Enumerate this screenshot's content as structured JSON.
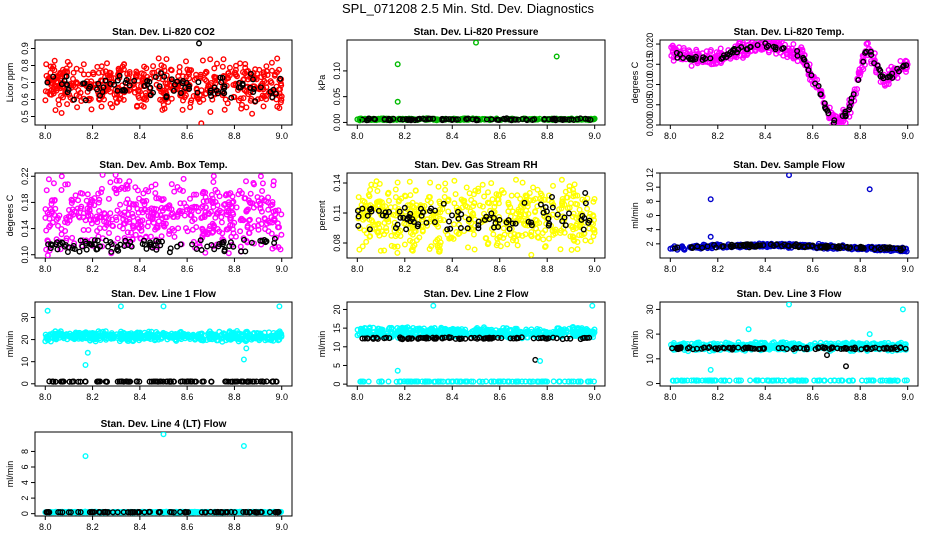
{
  "title": "SPL_071208  2.5 Min. Std. Dev. Diagnostics",
  "chart_data": [
    {
      "type": "scatter",
      "title": "Stan. Dev. Li-820 CO2",
      "xlabel": "",
      "ylabel": "Licor ppm",
      "xlim": [
        8.0,
        9.0
      ],
      "xticks": [
        "8.0",
        "8.2",
        "8.4",
        "8.6",
        "8.8",
        "9.0"
      ],
      "ylim": [
        0.45,
        0.95
      ],
      "yticks": [
        "0.5",
        "0.6",
        "0.7",
        "0.8",
        "0.9"
      ],
      "series": [
        {
          "name": "cloud",
          "color": "#ff0000",
          "base": 0.68,
          "noise": 0.17,
          "n": 520
        },
        {
          "name": "ref",
          "color": "#000000",
          "base": 0.68,
          "noise": 0.1,
          "n": 90
        }
      ],
      "outliers": [
        {
          "x": 8.65,
          "y": 0.93,
          "color": "#000000"
        },
        {
          "x": 8.66,
          "y": 0.46,
          "color": "#ff0000"
        },
        {
          "x": 8.99,
          "y": 0.55,
          "color": "#ff0000"
        }
      ]
    },
    {
      "type": "scatter",
      "title": "Stan. Dev. Li-820 Pressure",
      "xlabel": "",
      "ylabel": "kPa",
      "xlim": [
        8.0,
        9.0
      ],
      "xticks": [
        "8.0",
        "8.2",
        "8.4",
        "8.6",
        "8.8",
        "9.0"
      ],
      "ylim": [
        -0.005,
        0.16
      ],
      "yticks": [
        "0.00",
        "0.05",
        "0.10"
      ],
      "series": [
        {
          "name": "cloud",
          "color": "#00bb00",
          "base": 0.006,
          "noise": 0.002,
          "n": 300
        },
        {
          "name": "ref",
          "color": "#000000",
          "base": 0.006,
          "noise": 0.002,
          "n": 90
        }
      ],
      "outliers": [
        {
          "x": 8.17,
          "y": 0.113,
          "color": "#00bb00"
        },
        {
          "x": 8.17,
          "y": 0.04,
          "color": "#00bb00"
        },
        {
          "x": 8.5,
          "y": 0.155,
          "color": "#00bb00"
        },
        {
          "x": 8.84,
          "y": 0.128,
          "color": "#00bb00"
        },
        {
          "x": 8.01,
          "y": 0.004,
          "color": "#00bb00"
        }
      ]
    },
    {
      "type": "scatter",
      "title": "Stan. Dev. Li-820 Temp.",
      "xlabel": "",
      "ylabel": "degrees C",
      "xlim": [
        8.0,
        9.0
      ],
      "xticks": [
        "8.0",
        "8.2",
        "8.4",
        "8.6",
        "8.8",
        "9.0"
      ],
      "ylim": [
        0.0,
        0.021
      ],
      "yticks": [
        "0.000",
        "0.005",
        "0.010",
        "0.015",
        "0.020"
      ],
      "series": [
        {
          "name": "cloud",
          "color": "#ff00ff",
          "curve": "temp",
          "noise": 0.0025,
          "n": 420
        },
        {
          "name": "ref",
          "color": "#000000",
          "curve": "temp",
          "noise": 0.001,
          "n": 95
        }
      ],
      "outliers": []
    },
    {
      "type": "scatter",
      "title": "Stan. Dev. Amb. Box Temp.",
      "xlabel": "",
      "ylabel": "degrees C",
      "xlim": [
        8.0,
        9.0
      ],
      "xticks": [
        "8.0",
        "8.2",
        "8.4",
        "8.6",
        "8.8",
        "9.0"
      ],
      "ylim": [
        0.095,
        0.225
      ],
      "yticks": [
        "0.10",
        "0.14",
        "0.18",
        "0.22"
      ],
      "series": [
        {
          "name": "cloud",
          "color": "#ff00ff",
          "base": 0.16,
          "noise": 0.065,
          "n": 520
        },
        {
          "name": "ref",
          "color": "#000000",
          "base": 0.115,
          "noise": 0.012,
          "n": 95
        }
      ],
      "outliers": [
        {
          "x": 8.07,
          "y": 0.22,
          "color": "#ff00ff"
        }
      ]
    },
    {
      "type": "scatter",
      "title": "Stan. Dev. Gas Stream RH",
      "xlabel": "",
      "ylabel": "percent",
      "xlim": [
        8.0,
        9.0
      ],
      "xticks": [
        "8.0",
        "8.2",
        "8.4",
        "8.6",
        "8.8",
        "9.0"
      ],
      "ylim": [
        0.065,
        0.15
      ],
      "yticks": [
        "0.08",
        "0.11",
        "0.14"
      ],
      "series": [
        {
          "name": "cloud",
          "color": "#ffff00",
          "base": 0.105,
          "noise": 0.04,
          "n": 540
        },
        {
          "name": "ref",
          "color": "#000000",
          "base": 0.105,
          "noise": 0.018,
          "n": 90
        }
      ],
      "outliers": [
        {
          "x": 8.96,
          "y": 0.13,
          "color": "#000000"
        },
        {
          "x": 8.82,
          "y": 0.126,
          "color": "#000000"
        }
      ]
    },
    {
      "type": "scatter",
      "title": "Stan. Dev. Sample Flow",
      "xlabel": "",
      "ylabel": "ml/min",
      "xlim": [
        8.0,
        9.0
      ],
      "xticks": [
        "8.0",
        "8.2",
        "8.4",
        "8.6",
        "8.8",
        "9.0"
      ],
      "ylim": [
        0.0,
        12.0
      ],
      "yticks": [
        "2",
        "4",
        "6",
        "8",
        "10",
        "12"
      ],
      "series": [
        {
          "name": "cloud",
          "color": "#0000cc",
          "curve": "flow",
          "noise": 0.35,
          "n": 320
        },
        {
          "name": "ref",
          "color": "#000000",
          "curve": "flow",
          "noise": 0.25,
          "n": 100
        }
      ],
      "outliers": [
        {
          "x": 8.17,
          "y": 8.3,
          "color": "#0000cc"
        },
        {
          "x": 8.17,
          "y": 3.0,
          "color": "#0000cc"
        },
        {
          "x": 8.5,
          "y": 11.7,
          "color": "#0000cc"
        },
        {
          "x": 8.84,
          "y": 9.7,
          "color": "#0000cc"
        }
      ]
    },
    {
      "type": "scatter",
      "title": "Stan. Dev. Line 1 Flow",
      "xlabel": "",
      "ylabel": "ml/min",
      "xlim": [
        8.0,
        9.0
      ],
      "xticks": [
        "8.0",
        "8.2",
        "8.4",
        "8.6",
        "8.8",
        "9.0"
      ],
      "ylim": [
        -1,
        37
      ],
      "yticks": [
        "0",
        "10",
        "20",
        "30"
      ],
      "series": [
        {
          "name": "cloud",
          "color": "#00ffff",
          "base": 21.5,
          "noise": 2.5,
          "n": 520
        },
        {
          "name": "ref",
          "color": "#000000",
          "base": 1.0,
          "noise": 0.1,
          "n": 100
        }
      ],
      "outliers": [
        {
          "x": 8.01,
          "y": 33,
          "color": "#00ffff"
        },
        {
          "x": 8.32,
          "y": 35,
          "color": "#00ffff"
        },
        {
          "x": 8.5,
          "y": 35,
          "color": "#00ffff"
        },
        {
          "x": 8.99,
          "y": 35,
          "color": "#00ffff"
        },
        {
          "x": 8.17,
          "y": 8.5,
          "color": "#00ffff"
        },
        {
          "x": 8.18,
          "y": 14,
          "color": "#00ffff"
        },
        {
          "x": 8.84,
          "y": 11,
          "color": "#00ffff"
        },
        {
          "x": 8.85,
          "y": 16,
          "color": "#00ffff"
        }
      ]
    },
    {
      "type": "scatter",
      "title": "Stan. Dev. Line 2 Flow",
      "xlabel": "",
      "ylabel": "ml/min",
      "xlim": [
        8.0,
        9.0
      ],
      "xticks": [
        "8.0",
        "8.2",
        "8.4",
        "8.6",
        "8.8",
        "9.0"
      ],
      "ylim": [
        -0.5,
        22
      ],
      "yticks": [
        "0",
        "5",
        "10",
        "15",
        "20"
      ],
      "series": [
        {
          "name": "cloud",
          "color": "#00ffff",
          "base": 13.8,
          "noise": 1.6,
          "n": 520
        },
        {
          "name": "ref",
          "color": "#000000",
          "base": 12.3,
          "noise": 0.3,
          "n": 90
        },
        {
          "name": "base",
          "color": "#00ffff",
          "base": 0.7,
          "noise": 0.05,
          "n": 110
        }
      ],
      "outliers": [
        {
          "x": 8.17,
          "y": 3.6,
          "color": "#00ffff"
        },
        {
          "x": 8.32,
          "y": 21,
          "color": "#00ffff"
        },
        {
          "x": 8.75,
          "y": 6.5,
          "color": "#000000"
        },
        {
          "x": 8.77,
          "y": 6.2,
          "color": "#00ffff"
        },
        {
          "x": 8.99,
          "y": 21,
          "color": "#00ffff"
        }
      ]
    },
    {
      "type": "scatter",
      "title": "Stan. Dev. Line 3 Flow",
      "xlabel": "",
      "ylabel": "ml/min",
      "xlim": [
        8.0,
        9.0
      ],
      "xticks": [
        "8.0",
        "8.2",
        "8.4",
        "8.6",
        "8.8",
        "9.0"
      ],
      "ylim": [
        -1,
        33
      ],
      "yticks": [
        "0",
        "10",
        "20",
        "30"
      ],
      "series": [
        {
          "name": "cloud",
          "color": "#00ffff",
          "base": 15.0,
          "noise": 2.0,
          "n": 480
        },
        {
          "name": "ref",
          "color": "#000000",
          "base": 14.3,
          "noise": 0.6,
          "n": 100
        },
        {
          "name": "base",
          "color": "#00ffff",
          "base": 1.2,
          "noise": 0.1,
          "n": 110
        }
      ],
      "outliers": [
        {
          "x": 8.17,
          "y": 5.5,
          "color": "#00ffff"
        },
        {
          "x": 8.33,
          "y": 22,
          "color": "#00ffff"
        },
        {
          "x": 8.5,
          "y": 32,
          "color": "#00ffff"
        },
        {
          "x": 8.84,
          "y": 20,
          "color": "#00ffff"
        },
        {
          "x": 8.98,
          "y": 30,
          "color": "#00ffff"
        },
        {
          "x": 8.74,
          "y": 7,
          "color": "#000000"
        },
        {
          "x": 8.66,
          "y": 11.5,
          "color": "#000000"
        }
      ]
    },
    {
      "type": "scatter",
      "title": "Stan. Dev. Line 4 (LT) Flow",
      "xlabel": "",
      "ylabel": "ml/min",
      "xlim": [
        8.0,
        9.0
      ],
      "xticks": [
        "8.0",
        "8.2",
        "8.4",
        "8.6",
        "8.8",
        "9.0"
      ],
      "ylim": [
        -0.3,
        10.5
      ],
      "yticks": [
        "0",
        "2",
        "4",
        "6",
        "8"
      ],
      "series": [
        {
          "name": "cloud",
          "color": "#00ffff",
          "base": 0.2,
          "noise": 0.05,
          "n": 420
        },
        {
          "name": "ref",
          "color": "#000000",
          "base": 0.2,
          "noise": 0.03,
          "n": 100
        }
      ],
      "outliers": [
        {
          "x": 8.17,
          "y": 7.4,
          "color": "#00ffff"
        },
        {
          "x": 8.5,
          "y": 10.2,
          "color": "#00ffff"
        },
        {
          "x": 8.84,
          "y": 8.7,
          "color": "#00ffff"
        }
      ]
    }
  ]
}
